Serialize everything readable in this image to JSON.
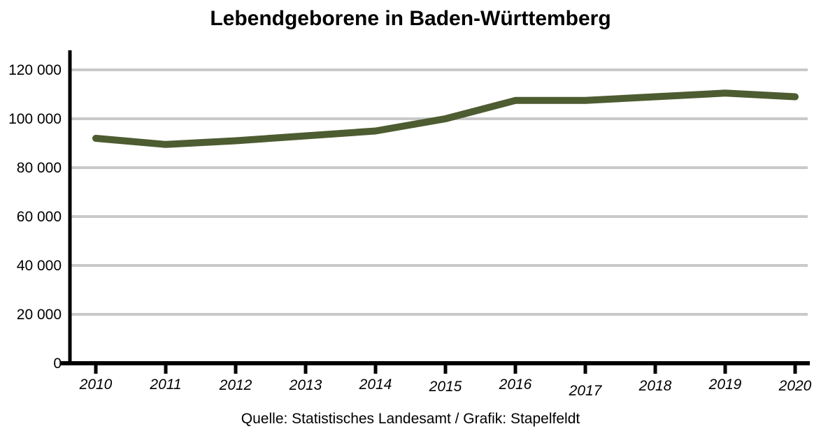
{
  "page": {
    "title": "Lebendgeborene in Baden-Württemberg",
    "source": "Quelle: Statistisches Landesamt / Grafik: Stapelfeldt"
  },
  "colors": {
    "background": "#ffffff",
    "line": "#4d5c31",
    "grid": "#c9c9c9",
    "axis": "#000000",
    "text": "#000000"
  },
  "chart_data": {
    "type": "line",
    "title": "Lebendgeborene in Baden-Württemberg",
    "xlabel": "",
    "ylabel": "",
    "x": [
      "2010",
      "2011",
      "2012",
      "2013",
      "2014",
      "2015",
      "2016",
      "2017",
      "2018",
      "2019",
      "2020"
    ],
    "series": [
      {
        "name": "Lebendgeborene",
        "values": [
          92000,
          89500,
          91000,
          93000,
          95000,
          100000,
          107500,
          107500,
          109000,
          110500,
          109000
        ]
      }
    ],
    "ylim": [
      0,
      128000
    ],
    "yticks": [
      0,
      20000,
      40000,
      60000,
      80000,
      100000,
      120000
    ],
    "ytick_labels": [
      "0",
      "20 000",
      "40 000",
      "60 000",
      "80 000",
      "100 000",
      "120 000"
    ],
    "grid": "horizontal-only",
    "legend": "none",
    "source": "Quelle: Statistisches Landesamt / Grafik: Stapelfeldt"
  }
}
